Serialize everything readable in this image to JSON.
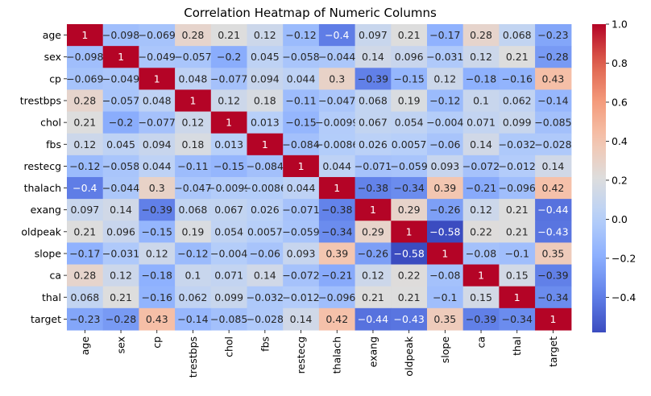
{
  "chart_data": {
    "type": "heatmap",
    "title": "Correlation Heatmap of Numeric Columns",
    "xlabel": "",
    "ylabel": "",
    "labels": [
      "age",
      "sex",
      "cp",
      "trestbps",
      "chol",
      "fbs",
      "restecg",
      "thalach",
      "exang",
      "oldpeak",
      "slope",
      "ca",
      "thal",
      "target"
    ],
    "matrix": [
      [
        1,
        -0.098,
        -0.069,
        0.28,
        0.21,
        0.12,
        -0.12,
        -0.4,
        0.097,
        0.21,
        -0.17,
        0.28,
        0.068,
        -0.23
      ],
      [
        -0.098,
        1,
        -0.049,
        -0.057,
        -0.2,
        0.045,
        -0.058,
        -0.044,
        0.14,
        0.096,
        -0.031,
        0.12,
        0.21,
        -0.28
      ],
      [
        -0.069,
        -0.049,
        1,
        0.048,
        -0.077,
        0.094,
        0.044,
        0.3,
        -0.39,
        -0.15,
        0.12,
        -0.18,
        -0.16,
        0.43
      ],
      [
        0.28,
        -0.057,
        0.048,
        1,
        0.12,
        0.18,
        -0.11,
        -0.047,
        0.068,
        0.19,
        -0.12,
        0.1,
        0.062,
        -0.14
      ],
      [
        0.21,
        -0.2,
        -0.077,
        0.12,
        1,
        0.013,
        -0.15,
        -0.0099,
        0.067,
        0.054,
        -0.004,
        0.071,
        0.099,
        -0.085
      ],
      [
        0.12,
        0.045,
        0.094,
        0.18,
        0.013,
        1,
        -0.084,
        -0.0086,
        0.026,
        0.0057,
        -0.06,
        0.14,
        -0.032,
        -0.028
      ],
      [
        -0.12,
        -0.058,
        0.044,
        -0.11,
        -0.15,
        -0.084,
        1,
        0.044,
        -0.071,
        -0.059,
        0.093,
        -0.072,
        -0.012,
        0.14
      ],
      [
        -0.4,
        -0.044,
        0.3,
        -0.047,
        -0.0099,
        -0.0086,
        0.044,
        1,
        -0.38,
        -0.34,
        0.39,
        -0.21,
        -0.096,
        0.42
      ],
      [
        0.097,
        0.14,
        -0.39,
        0.068,
        0.067,
        0.026,
        -0.071,
        -0.38,
        1,
        0.29,
        -0.26,
        0.12,
        0.21,
        -0.44
      ],
      [
        0.21,
        0.096,
        -0.15,
        0.19,
        0.054,
        0.0057,
        -0.059,
        -0.34,
        0.29,
        1,
        -0.58,
        0.22,
        0.21,
        -0.43
      ],
      [
        -0.17,
        -0.031,
        0.12,
        -0.12,
        -0.004,
        -0.06,
        0.093,
        0.39,
        -0.26,
        -0.58,
        1,
        -0.08,
        -0.1,
        0.35
      ],
      [
        0.28,
        0.12,
        -0.18,
        0.1,
        0.071,
        0.14,
        -0.072,
        -0.21,
        0.12,
        0.22,
        -0.08,
        1,
        0.15,
        -0.39
      ],
      [
        0.068,
        0.21,
        -0.16,
        0.062,
        0.099,
        -0.032,
        -0.012,
        -0.096,
        0.21,
        0.21,
        -0.1,
        0.15,
        1,
        -0.34
      ],
      [
        -0.23,
        -0.28,
        0.43,
        -0.14,
        -0.085,
        -0.028,
        0.14,
        0.42,
        -0.44,
        -0.43,
        0.35,
        -0.39,
        -0.34,
        1
      ]
    ],
    "colorbar": {
      "min": -0.58,
      "max": 1,
      "ticks": [
        1.0,
        0.8,
        0.6,
        0.4,
        0.2,
        0.0,
        -0.2,
        -0.4
      ],
      "tick_labels": [
        "1.0",
        "0.8",
        "0.6",
        "0.4",
        "0.2",
        "0.0",
        "−0.2",
        "−0.4"
      ]
    },
    "colormap": "coolwarm",
    "grid": false,
    "legend": "colorbar-right"
  }
}
